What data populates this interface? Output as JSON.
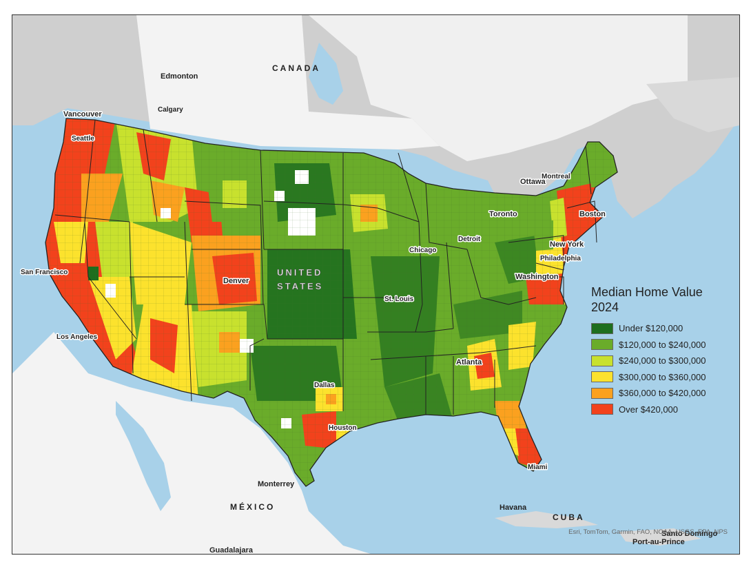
{
  "map": {
    "title": "Median Home Value",
    "subtitle": "2024",
    "attribution": "Esri, TomTom, Garmin, FAO, NOAA, USGS, EPA, NPS",
    "legend": [
      {
        "label": "Under $120,000",
        "color": "#1e6e1e"
      },
      {
        "label": "$120,000 to $240,000",
        "color": "#6aac2a"
      },
      {
        "label": "$240,000 to $300,000",
        "color": "#c8e12e"
      },
      {
        "label": "$300,000 to $360,000",
        "color": "#fce22d"
      },
      {
        "label": "$360,000 to $420,000",
        "color": "#fba11f"
      },
      {
        "label": "Over $420,000",
        "color": "#f2421c"
      }
    ],
    "countries": {
      "canada": "CANADA",
      "mexico": "MÉXICO",
      "us_line1": "UNITED",
      "us_line2": "STATES",
      "cuba": "CUBA"
    },
    "cities": {
      "edmonton": "Edmonton",
      "calgary": "Calgary",
      "vancouver": "Vancouver",
      "seattle": "Seattle",
      "sanfrancisco": "San Francisco",
      "losangeles": "Los Angeles",
      "denver": "Denver",
      "stlouis": "St. Louis",
      "chicago": "Chicago",
      "detroit": "Detroit",
      "toronto": "Toronto",
      "ottawa": "Ottawa",
      "montreal": "Montreal",
      "boston": "Boston",
      "newyork": "New York",
      "philadelphia": "Philadelphia",
      "washington": "Washington",
      "atlanta": "Atlanta",
      "dallas": "Dallas",
      "houston": "Houston",
      "miami": "Miami",
      "monterrey": "Monterrey",
      "havana": "Havana",
      "santodomingo": "Santo Domingo",
      "portauprince": "Port-au-Prince",
      "guadalajara": "Guadalajara"
    }
  }
}
